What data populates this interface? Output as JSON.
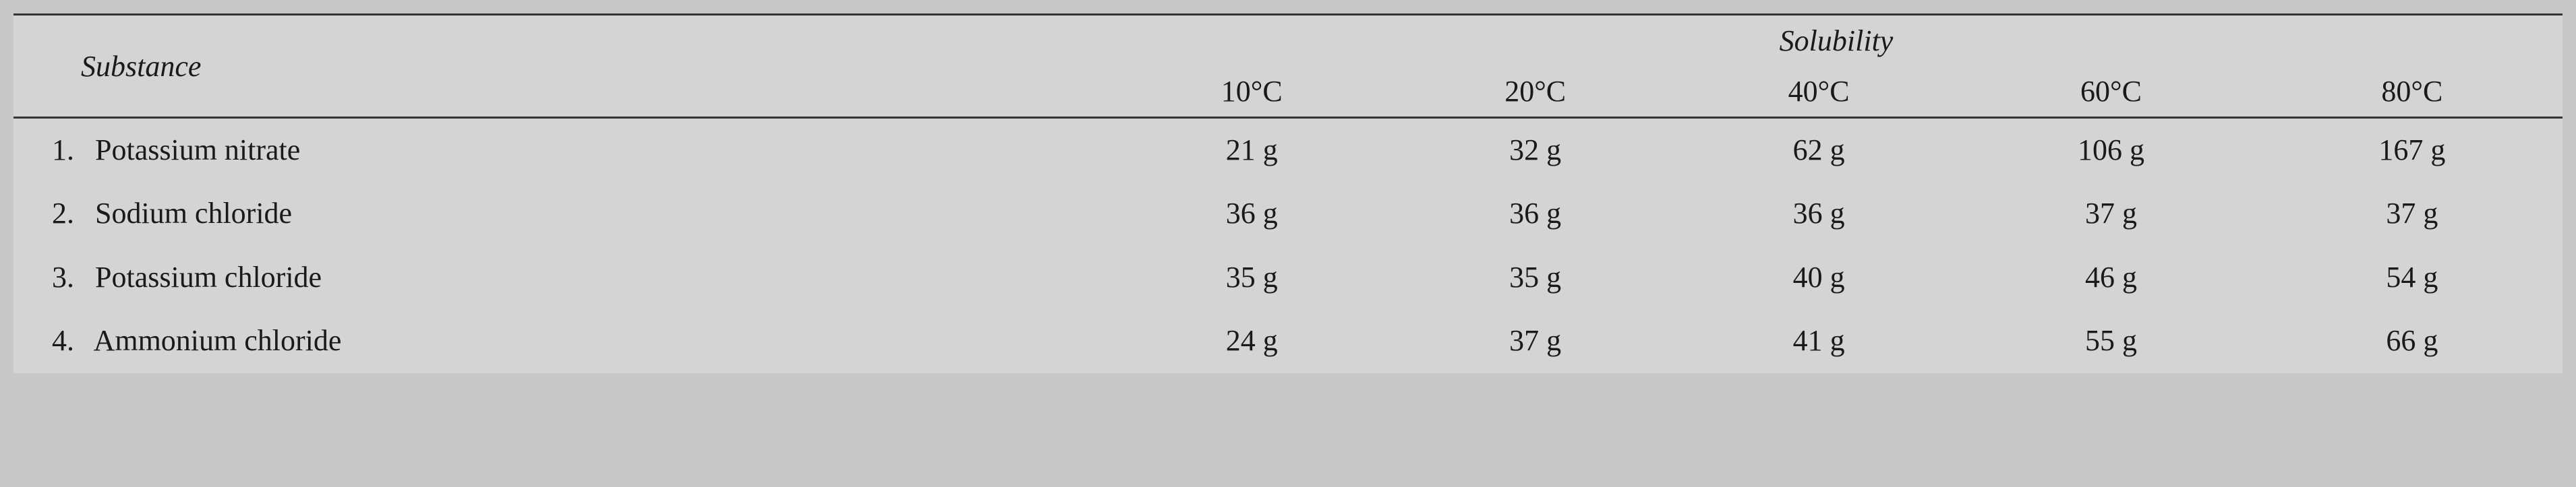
{
  "table": {
    "headers": {
      "substance": "Substance",
      "solubility": "Solubility"
    },
    "temperatures": [
      "10°C",
      "20°C",
      "40°C",
      "60°C",
      "80°C"
    ],
    "rows": [
      {
        "num": "1.",
        "name": "Potassium nitrate",
        "values": [
          "21 g",
          "32 g",
          "62 g",
          "106 g",
          "167 g"
        ]
      },
      {
        "num": "2.",
        "name": "Sodium chloride",
        "values": [
          "36 g",
          "36 g",
          "36 g",
          "37 g",
          "37 g"
        ]
      },
      {
        "num": "3.",
        "name": "Potassium chloride",
        "values": [
          "35 g",
          "35 g",
          "40 g",
          "46 g",
          "54 g"
        ]
      },
      {
        "num": "4.",
        "name": "Ammonium chloride",
        "values": [
          "24 g",
          "37 g",
          "41 g",
          "55 g",
          "66 g"
        ]
      }
    ],
    "styling": {
      "background_color": "#d4d4d4",
      "text_color": "#1a1a1a",
      "rule_color": "#333333",
      "font_family": "Georgia, serif",
      "font_size": 44,
      "header_italic": true
    }
  }
}
